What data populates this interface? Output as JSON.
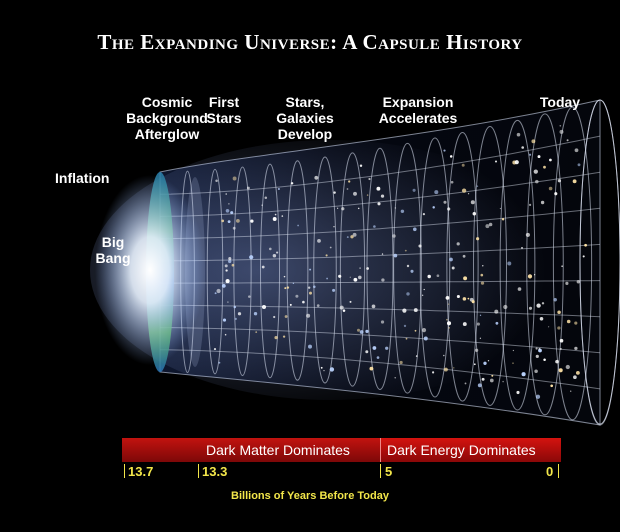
{
  "title": "The Expanding Universe: A Capsule History",
  "epochs": {
    "cmb": "Cosmic\nBackground\nAfterglow",
    "first_stars": "First\nStars",
    "galaxies": "Stars,\nGalaxies\nDevelop",
    "expansion": "Expansion\nAccelerates",
    "today": "Today",
    "inflation": "Inflation",
    "big_bang": "Big\nBang"
  },
  "bars": {
    "dark_matter": "Dark Matter Dominates",
    "dark_energy": "Dark Energy Dominates"
  },
  "ticks": [
    "13.7",
    "13.3",
    "5",
    "0"
  ],
  "axis_caption": "Billions of Years Before Today",
  "colors": {
    "bar_red": "#b5100d",
    "tick_yellow": "#f2e64a",
    "glow": "#ffffff",
    "cmb_green": "#3fa84a"
  }
}
